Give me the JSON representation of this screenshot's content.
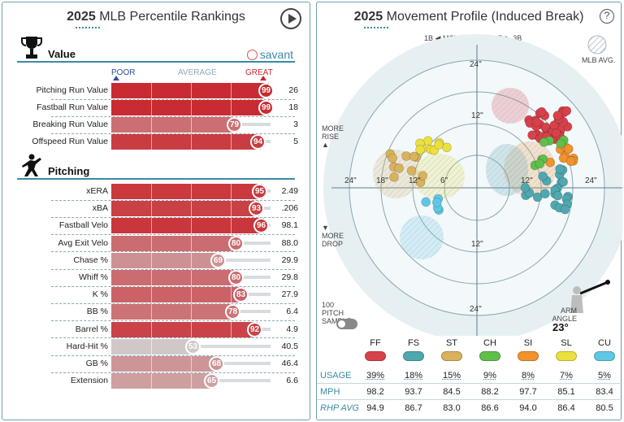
{
  "left": {
    "year": "2025",
    "title": "MLB Percentile Rankings",
    "value_section": "Value",
    "pitching_section": "Pitching",
    "brand": "savant",
    "scale": {
      "poor": "POOR",
      "average": "AVERAGE",
      "great": "GREAT"
    },
    "value_rows": [
      {
        "label": "Pitching Run Value",
        "pct": 99,
        "value": "26"
      },
      {
        "label": "Fastball Run Value",
        "pct": 99,
        "value": "18"
      },
      {
        "label": "Breaking Run Value",
        "pct": 79,
        "value": "3"
      },
      {
        "label": "Offspeed Run Value",
        "pct": 94,
        "value": "5"
      }
    ],
    "pitching_rows": [
      {
        "label": "xERA",
        "pct": 95,
        "value": "2.49"
      },
      {
        "label": "xBA",
        "pct": 93,
        "value": ".206"
      },
      {
        "label": "Fastball Velo",
        "pct": 96,
        "value": "98.1"
      },
      {
        "label": "Avg Exit Velo",
        "pct": 80,
        "value": "88.0"
      },
      {
        "label": "Chase %",
        "pct": 69,
        "value": "29.9"
      },
      {
        "label": "Whiff %",
        "pct": 80,
        "value": "29.8"
      },
      {
        "label": "K %",
        "pct": 83,
        "value": "27.9"
      },
      {
        "label": "BB %",
        "pct": 78,
        "value": "6.4"
      },
      {
        "label": "Barrel %",
        "pct": 92,
        "value": "4.9"
      },
      {
        "label": "Hard-Hit %",
        "pct": 53,
        "value": "40.5"
      },
      {
        "label": "GB %",
        "pct": 68,
        "value": "46.4"
      },
      {
        "label": "Extension",
        "pct": 65,
        "value": "6.6"
      }
    ]
  },
  "right": {
    "year": "2025",
    "title": "Movement Profile (Induced Break)",
    "help": "?",
    "moves_toward": "MOVES TOWARD",
    "side_left": "1B",
    "side_right": "3B",
    "mlb_avg": "MLB AVG.",
    "more_rise": "MORE RISE",
    "more_drop": "MORE DROP",
    "sample_toggle": "100 PITCH SAMPLE",
    "arm_angle_label": "ARM ANGLE",
    "arm_angle": "23°",
    "rings": {
      "inner": "6\"",
      "mid": "12\"",
      "outer": "18\"",
      "edge": "24\""
    },
    "rows": {
      "usage": "USAGE",
      "mph": "MPH",
      "rhp": "RHP AVG"
    },
    "pitches": [
      {
        "code": "FF",
        "usage": "39%",
        "mph": "98.2",
        "rhp": "94.9",
        "color": "#d9414a"
      },
      {
        "code": "FS",
        "usage": "18%",
        "mph": "93.7",
        "rhp": "86.7",
        "color": "#4fa8b0"
      },
      {
        "code": "ST",
        "usage": "15%",
        "mph": "84.5",
        "rhp": "83.0",
        "color": "#d9b25e"
      },
      {
        "code": "CH",
        "usage": "9%",
        "mph": "88.2",
        "rhp": "86.6",
        "color": "#5fbf4a"
      },
      {
        "code": "SI",
        "usage": "8%",
        "mph": "97.7",
        "rhp": "94.0",
        "color": "#f0932e"
      },
      {
        "code": "SL",
        "usage": "7%",
        "mph": "85.1",
        "rhp": "86.4",
        "color": "#ece03c"
      },
      {
        "code": "CU",
        "usage": "5%",
        "mph": "83.4",
        "rhp": "80.5",
        "color": "#5fc8e6"
      }
    ]
  }
}
